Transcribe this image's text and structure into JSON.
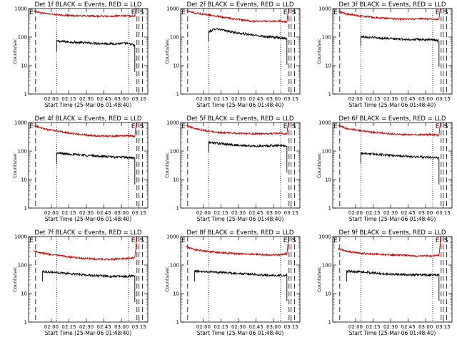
{
  "chart_data": [
    {
      "type": "line",
      "title": "Det 1f BLACK = Events, RED = LLD",
      "xlabel": "Start Time (25-Mar-06 01:48:40)",
      "ylabel": "Counts/sec",
      "yscale": "log",
      "ylim": [
        1,
        1000
      ],
      "xlim": [
        96,
        130
      ],
      "xticks": [
        "02:00",
        "02:15",
        "02:30",
        "02:45",
        "03:00",
        "03:15"
      ],
      "yticks": [
        "1",
        "10",
        "100",
        "1000"
      ],
      "markers": {
        "start": "E",
        "stop": "S"
      },
      "series": [
        {
          "name": "Events",
          "color": "#000000",
          "x": [
            104,
            108,
            112,
            116,
            120,
            124,
            124.5,
            125.5,
            126.3
          ],
          "y": [
            72,
            67,
            63,
            60,
            58,
            60,
            58,
            55,
            50
          ]
        },
        {
          "name": "LLD",
          "color": "#cc0000",
          "x": [
            97.5,
            100,
            104,
            108,
            112,
            116,
            120,
            124,
            126.3
          ],
          "y": [
            830,
            690,
            600,
            570,
            555,
            540,
            540,
            560,
            530
          ]
        }
      ]
    },
    {
      "type": "line",
      "title": "Det 2f BLACK = Events, RED = LLD",
      "xlabel": "Start Time (25-Mar-06 01:48:40)",
      "ylabel": "Counts/sec",
      "yscale": "log",
      "ylim": [
        1,
        1000
      ],
      "xlim": [
        96,
        130
      ],
      "xticks": [
        "02:00",
        "02:15",
        "02:30",
        "02:45",
        "03:00",
        "03:15"
      ],
      "yticks": [
        "1",
        "10",
        "100",
        "1000"
      ],
      "markers": {
        "start": "E",
        "stop": "S"
      },
      "series": [
        {
          "name": "Events",
          "color": "#000000",
          "x": [
            104,
            106,
            108,
            112,
            116,
            120,
            124,
            126.3
          ],
          "y": [
            150,
            200,
            175,
            140,
            120,
            105,
            95,
            90
          ]
        },
        {
          "name": "LLD",
          "color": "#cc0000",
          "x": [
            97.5,
            100,
            104,
            108,
            112,
            116,
            120,
            124,
            126.3
          ],
          "y": [
            850,
            700,
            600,
            500,
            420,
            360,
            360,
            370,
            330
          ]
        }
      ]
    },
    {
      "type": "line",
      "title": "Det 3f BLACK = Events, RED = LLD",
      "xlabel": "Start Time (25-Mar-06 01:48:40)",
      "ylabel": "Counts/sec",
      "yscale": "log",
      "ylim": [
        1,
        1000
      ],
      "xlim": [
        96,
        130
      ],
      "xticks": [
        "02:00",
        "02:15",
        "02:30",
        "02:45",
        "03:00",
        "03:15"
      ],
      "yticks": [
        "1",
        "10",
        "100",
        "1000"
      ],
      "markers": {
        "start": "E",
        "stop": "S"
      },
      "series": [
        {
          "name": "Events",
          "color": "#000000",
          "x": [
            104,
            108,
            112,
            116,
            120,
            124,
            126.3
          ],
          "y": [
            105,
            95,
            88,
            84,
            82,
            80,
            75
          ]
        },
        {
          "name": "LLD",
          "color": "#cc0000",
          "x": [
            97.5,
            100,
            104,
            108,
            112,
            116,
            120,
            124,
            126.3
          ],
          "y": [
            800,
            640,
            550,
            480,
            450,
            430,
            430,
            440,
            410
          ]
        }
      ]
    },
    {
      "type": "line",
      "title": "Det 4f BLACK = Events, RED = LLD",
      "xlabel": "Start Time (25-Mar-06 01:48:40)",
      "ylabel": "Counts/sec",
      "yscale": "log",
      "ylim": [
        1,
        1000
      ],
      "xlim": [
        96,
        130
      ],
      "xticks": [
        "02:00",
        "02:15",
        "02:30",
        "02:45",
        "03:00",
        "03:15"
      ],
      "yticks": [
        "1",
        "10",
        "100",
        "1000"
      ],
      "markers": {
        "start": "E",
        "stop": "S"
      },
      "series": [
        {
          "name": "Events",
          "color": "#000000",
          "x": [
            104,
            108,
            112,
            116,
            120,
            124,
            126.3
          ],
          "y": [
            85,
            78,
            72,
            66,
            62,
            60,
            56
          ]
        },
        {
          "name": "LLD",
          "color": "#cc0000",
          "x": [
            97.5,
            100,
            104,
            108,
            112,
            116,
            120,
            124,
            126.3
          ],
          "y": [
            800,
            620,
            500,
            420,
            370,
            340,
            330,
            350,
            330
          ]
        }
      ]
    },
    {
      "type": "line",
      "title": "Det 5f BLACK = Events, RED = LLD",
      "xlabel": "Start Time (25-Mar-06 01:48:40)",
      "ylabel": "Counts/sec",
      "yscale": "log",
      "ylim": [
        1,
        1000
      ],
      "xlim": [
        96,
        130
      ],
      "xticks": [
        "02:00",
        "02:15",
        "02:30",
        "02:45",
        "03:00",
        "03:15"
      ],
      "yticks": [
        "1",
        "10",
        "100",
        "1000"
      ],
      "markers": {
        "start": "E",
        "stop": "S"
      },
      "series": [
        {
          "name": "Events",
          "color": "#000000",
          "x": [
            104,
            108,
            112,
            116,
            120,
            124,
            126.3
          ],
          "y": [
            200,
            180,
            160,
            150,
            150,
            160,
            150
          ]
        },
        {
          "name": "LLD",
          "color": "#cc0000",
          "x": [
            97.5,
            100,
            104,
            108,
            112,
            116,
            120,
            124,
            126.3
          ],
          "y": [
            800,
            620,
            500,
            440,
            420,
            410,
            400,
            420,
            390
          ]
        }
      ]
    },
    {
      "type": "line",
      "title": "Det 6f BLACK = Events, RED = LLD",
      "xlabel": "Start Time (25-Mar-06 01:48:40)",
      "ylabel": "Counts/sec",
      "yscale": "log",
      "ylim": [
        1,
        1000
      ],
      "xlim": [
        96,
        130
      ],
      "xticks": [
        "02:00",
        "02:15",
        "02:30",
        "02:45",
        "03:00",
        "03:15"
      ],
      "yticks": [
        "1",
        "10",
        "100",
        "1000"
      ],
      "markers": {
        "start": "E",
        "stop": "S"
      },
      "series": [
        {
          "name": "Events",
          "color": "#000000",
          "x": [
            104,
            108,
            112,
            116,
            120,
            124,
            126.3
          ],
          "y": [
            85,
            78,
            72,
            66,
            62,
            60,
            56
          ]
        },
        {
          "name": "LLD",
          "color": "#cc0000",
          "x": [
            97.5,
            100,
            104,
            108,
            112,
            116,
            120,
            124,
            126.3
          ],
          "y": [
            780,
            620,
            520,
            450,
            410,
            380,
            370,
            380,
            360
          ]
        }
      ]
    },
    {
      "type": "line",
      "title": "Det 7f BLACK = Events, RED = LLD",
      "xlabel": "Start Time (25-Mar-06 01:48:40)",
      "ylabel": "Counts/sec",
      "yscale": "log",
      "ylim": [
        1,
        1000
      ],
      "xlim": [
        96,
        130
      ],
      "xticks": [
        "02:00",
        "02:15",
        "02:30",
        "02:45",
        "03:00",
        "03:15"
      ],
      "yticks": [
        "1",
        "10",
        "100",
        "1000"
      ],
      "markers": {
        "start": "E",
        "stop": "S"
      },
      "series": [
        {
          "name": "Events",
          "color": "#000000",
          "x": [
            100,
            104,
            108,
            112,
            116,
            120,
            124,
            126.3
          ],
          "y": [
            60,
            55,
            50,
            45,
            42,
            40,
            40,
            42
          ]
        },
        {
          "name": "LLD",
          "color": "#cc0000",
          "x": [
            97.5,
            100,
            104,
            108,
            112,
            116,
            120,
            124,
            126.3
          ],
          "y": [
            320,
            260,
            220,
            190,
            170,
            160,
            160,
            170,
            180
          ]
        }
      ]
    },
    {
      "type": "line",
      "title": "Det 8f BLACK = Events, RED = LLD",
      "xlabel": "Start Time (25-Mar-06 01:48:40)",
      "ylabel": "Counts/sec",
      "yscale": "log",
      "ylim": [
        1,
        1000
      ],
      "xlim": [
        96,
        130
      ],
      "xticks": [
        "02:00",
        "02:15",
        "02:30",
        "02:45",
        "03:00",
        "03:15"
      ],
      "yticks": [
        "1",
        "10",
        "100",
        "1000"
      ],
      "markers": {
        "start": "E",
        "stop": "S"
      },
      "series": [
        {
          "name": "Events",
          "color": "#000000",
          "x": [
            100,
            104,
            108,
            112,
            116,
            120,
            124,
            126.3
          ],
          "y": [
            60,
            60,
            55,
            50,
            48,
            45,
            42,
            45
          ]
        },
        {
          "name": "LLD",
          "color": "#cc0000",
          "x": [
            97.5,
            100,
            104,
            108,
            112,
            116,
            120,
            124,
            126.3
          ],
          "y": [
            450,
            350,
            300,
            270,
            250,
            240,
            230,
            230,
            250
          ]
        }
      ]
    },
    {
      "type": "line",
      "title": "Det 9f BLACK = Events, RED = LLD",
      "xlabel": "Start Time (25-Mar-06 01:48:40)",
      "ylabel": "Counts/sec",
      "yscale": "log",
      "ylim": [
        1,
        1000
      ],
      "xlim": [
        96,
        130
      ],
      "xticks": [
        "02:00",
        "02:15",
        "02:30",
        "02:45",
        "03:00",
        "03:15"
      ],
      "yticks": [
        "1",
        "10",
        "100",
        "1000"
      ],
      "markers": {
        "start": "E",
        "stop": "S"
      },
      "series": [
        {
          "name": "Events",
          "color": "#000000",
          "x": [
            100,
            104,
            108,
            112,
            116,
            120,
            124,
            126.3
          ],
          "y": [
            60,
            58,
            52,
            48,
            47,
            45,
            45,
            46
          ]
        },
        {
          "name": "LLD",
          "color": "#cc0000",
          "x": [
            97.5,
            100,
            104,
            108,
            112,
            116,
            120,
            124,
            126.3
          ],
          "y": [
            380,
            300,
            260,
            240,
            230,
            220,
            210,
            210,
            220
          ]
        }
      ]
    }
  ]
}
